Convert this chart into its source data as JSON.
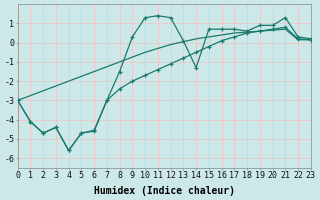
{
  "xlabel": "Humidex (Indice chaleur)",
  "background_color": "#cde8e8",
  "grid_color": "#e8c8c8",
  "line_color": "#1a7a6e",
  "x_data": [
    0,
    1,
    2,
    3,
    4,
    5,
    6,
    7,
    8,
    9,
    10,
    11,
    12,
    13,
    14,
    15,
    16,
    17,
    18,
    19,
    20,
    21,
    22,
    23
  ],
  "y_line1": [
    -3.0,
    -4.1,
    -4.7,
    -4.4,
    -5.6,
    -4.7,
    -4.6,
    -3.0,
    -1.5,
    0.3,
    1.3,
    1.4,
    1.3,
    0.1,
    -1.3,
    0.7,
    0.7,
    0.7,
    0.6,
    0.9,
    0.9,
    1.3,
    0.3,
    0.2
  ],
  "y_line2": [
    -3.0,
    -4.1,
    -4.7,
    -4.4,
    -5.6,
    -4.7,
    -4.55,
    -3.0,
    -2.4,
    -2.0,
    -1.7,
    -1.4,
    -1.1,
    -0.8,
    -0.5,
    -0.2,
    0.1,
    0.3,
    0.5,
    0.6,
    0.7,
    0.8,
    0.2,
    0.15
  ],
  "y_trend": [
    -3.0,
    -2.75,
    -2.5,
    -2.25,
    -2.0,
    -1.75,
    -1.5,
    -1.25,
    -1.0,
    -0.75,
    -0.5,
    -0.3,
    -0.1,
    0.05,
    0.2,
    0.3,
    0.4,
    0.5,
    0.55,
    0.6,
    0.65,
    0.7,
    0.15,
    0.15
  ],
  "xlim": [
    0,
    23
  ],
  "ylim": [
    -6.5,
    2.0
  ],
  "yticks": [
    -6,
    -5,
    -4,
    -3,
    -2,
    -1,
    0,
    1
  ],
  "xticks": [
    0,
    1,
    2,
    3,
    4,
    5,
    6,
    7,
    8,
    9,
    10,
    11,
    12,
    13,
    14,
    15,
    16,
    17,
    18,
    19,
    20,
    21,
    22,
    23
  ],
  "fontsize_label": 7,
  "fontsize_tick": 6
}
